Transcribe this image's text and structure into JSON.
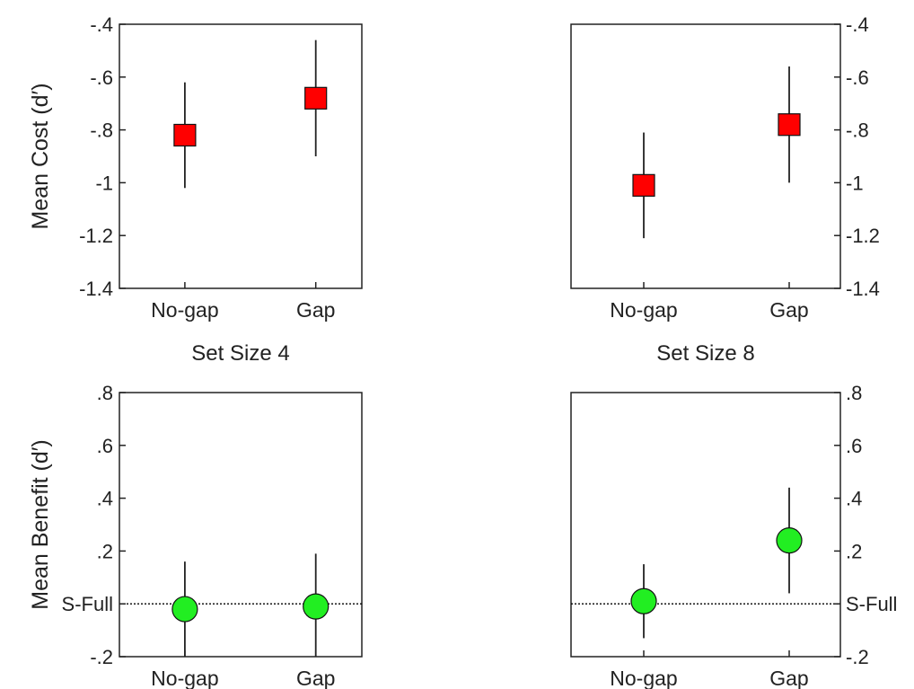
{
  "colors": {
    "cost_marker": "#ff0000",
    "benefit_marker": "#22ee22",
    "axis": "#222222"
  },
  "chart_data": [
    {
      "id": "cost-set4",
      "type": "scatter",
      "marker": "square",
      "color": "#ff0000",
      "categories": [
        "No-gap",
        "Gap"
      ],
      "values": [
        -0.82,
        -0.68
      ],
      "err_low": [
        -1.02,
        -0.9
      ],
      "err_high": [
        -0.62,
        -0.46
      ],
      "ylim": [
        -1.4,
        -0.4
      ],
      "yticks": [
        -1.4,
        -1.2,
        -1.0,
        -0.8,
        -0.6,
        -0.4
      ],
      "ytick_labels": [
        "-1.4",
        "-1.2",
        "-1",
        "-.8",
        "-.6",
        "-.4"
      ],
      "ylabel": "Mean Cost (d′)",
      "yaxis_side": "left",
      "title": "",
      "reference_line": null
    },
    {
      "id": "cost-set8",
      "type": "scatter",
      "marker": "square",
      "color": "#ff0000",
      "categories": [
        "No-gap",
        "Gap"
      ],
      "values": [
        -1.01,
        -0.78
      ],
      "err_low": [
        -1.21,
        -1.0
      ],
      "err_high": [
        -0.81,
        -0.56
      ],
      "ylim": [
        -1.4,
        -0.4
      ],
      "yticks": [
        -1.4,
        -1.2,
        -1.0,
        -0.8,
        -0.6,
        -0.4
      ],
      "ytick_labels": [
        "-1.4",
        "-1.2",
        "-1",
        "-.8",
        "-.6",
        "-.4"
      ],
      "ylabel": "",
      "yaxis_side": "right",
      "title": "",
      "reference_line": null
    },
    {
      "id": "benefit-set4",
      "type": "scatter",
      "marker": "circle",
      "color": "#22ee22",
      "categories": [
        "No-gap",
        "Gap"
      ],
      "values": [
        -0.02,
        -0.01
      ],
      "err_low": [
        -0.22,
        -0.21
      ],
      "err_high": [
        0.16,
        0.19
      ],
      "ylim": [
        -0.2,
        0.8
      ],
      "yticks": [
        -0.2,
        0.0,
        0.2,
        0.4,
        0.6,
        0.8
      ],
      "ytick_labels": [
        "-.2",
        "S-Full",
        ".2",
        ".4",
        ".6",
        ".8"
      ],
      "ylabel": "Mean Benefit (d′)",
      "yaxis_side": "left",
      "title": "Set Size 4",
      "reference_line": 0.0
    },
    {
      "id": "benefit-set8",
      "type": "scatter",
      "marker": "circle",
      "color": "#22ee22",
      "categories": [
        "No-gap",
        "Gap"
      ],
      "values": [
        0.01,
        0.24
      ],
      "err_low": [
        -0.13,
        0.04
      ],
      "err_high": [
        0.15,
        0.44
      ],
      "ylim": [
        -0.2,
        0.8
      ],
      "yticks": [
        -0.2,
        0.0,
        0.2,
        0.4,
        0.6,
        0.8
      ],
      "ytick_labels": [
        "-.2",
        "S-Full",
        ".2",
        ".4",
        ".6",
        ".8"
      ],
      "ylabel": "",
      "yaxis_side": "right",
      "title": "Set Size 8",
      "reference_line": 0.0
    }
  ]
}
